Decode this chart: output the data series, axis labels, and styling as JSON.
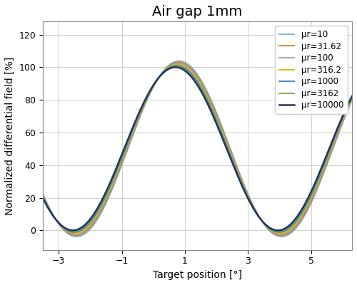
{
  "title": "Air gap 1mm",
  "xlabel": "Target position [°]",
  "ylabel": "Normalized differential field [%]",
  "xlim": [
    -3.5,
    6.3
  ],
  "ylim": [
    -12,
    128
  ],
  "xticks": [
    -3,
    -1,
    1,
    3,
    5
  ],
  "yticks": [
    0,
    20,
    40,
    60,
    80,
    100,
    120
  ],
  "series": [
    {
      "label": "μr=10",
      "color": "#7bafd4",
      "lw": 1.3,
      "spread": 1.0
    },
    {
      "label": "μr=31.62",
      "color": "#c8822a",
      "lw": 1.3,
      "spread": 0.82
    },
    {
      "label": "μr=100",
      "color": "#a0a0a0",
      "lw": 1.3,
      "spread": 0.65
    },
    {
      "label": "μr=316.2",
      "color": "#d4b800",
      "lw": 1.3,
      "spread": 0.48
    },
    {
      "label": "μr=1000",
      "color": "#4472c4",
      "lw": 1.3,
      "spread": 0.3
    },
    {
      "label": "μr=3162",
      "color": "#70a84f",
      "lw": 1.3,
      "spread": 0.15
    },
    {
      "label": "μr=10000",
      "color": "#1c3464",
      "lw": 1.8,
      "spread": 0.0
    }
  ],
  "background_color": "#ffffff",
  "grid_color": "#c8c8c8",
  "title_fontsize": 14,
  "axis_label_fontsize": 10,
  "tick_fontsize": 9,
  "peak_x": 0.7,
  "min1_x": -1.8,
  "min2_x": 4.5,
  "period": 6.5
}
